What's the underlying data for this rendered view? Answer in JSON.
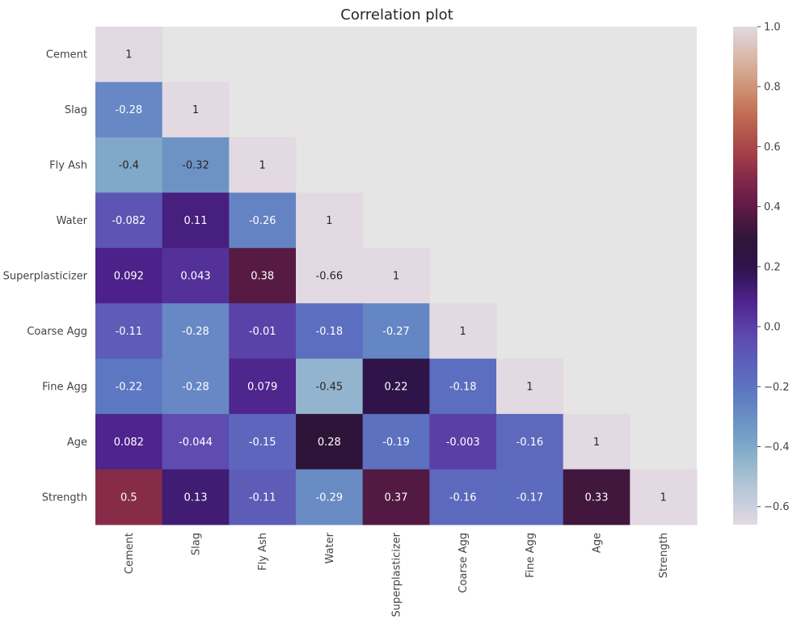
{
  "chart_data": {
    "type": "heatmap",
    "title": "Correlation plot",
    "xlabel": "",
    "ylabel": "",
    "variables": [
      "Cement",
      "Slag",
      "Fly Ash",
      "Water",
      "Superplasticizer",
      "Coarse Agg",
      "Fine Agg",
      "Age",
      "Strength"
    ],
    "matrix_lower": [
      [
        "1"
      ],
      [
        "-0.28",
        "1"
      ],
      [
        "-0.4",
        "-0.32",
        "1"
      ],
      [
        "-0.082",
        "0.11",
        "-0.26",
        "1"
      ],
      [
        "0.092",
        "0.043",
        "0.38",
        "-0.66",
        "1"
      ],
      [
        "-0.11",
        "-0.28",
        "-0.01",
        "-0.18",
        "-0.27",
        "1"
      ],
      [
        "-0.22",
        "-0.28",
        "0.079",
        "-0.45",
        "0.22",
        "-0.18",
        "1"
      ],
      [
        "0.082",
        "-0.044",
        "-0.15",
        "0.28",
        "-0.19",
        "-0.003",
        "-0.16",
        "1"
      ],
      [
        "0.5",
        "0.13",
        "-0.11",
        "-0.29",
        "0.37",
        "-0.16",
        "-0.17",
        "0.33",
        "1"
      ]
    ],
    "masked": "upper-triangle",
    "colormap": "twilight_shifted",
    "vmin": -0.66,
    "vmax": 1.0,
    "colorbar_ticks": [
      "1.0",
      "0.8",
      "0.6",
      "0.4",
      "0.2",
      "0.0",
      "−0.2",
      "−0.4",
      "−0.6"
    ],
    "colorbar_tick_values": [
      1.0,
      0.8,
      0.6,
      0.4,
      0.2,
      0.0,
      -0.2,
      -0.4,
      -0.6
    ],
    "grid": false,
    "background_color": "#e5e5e5"
  }
}
